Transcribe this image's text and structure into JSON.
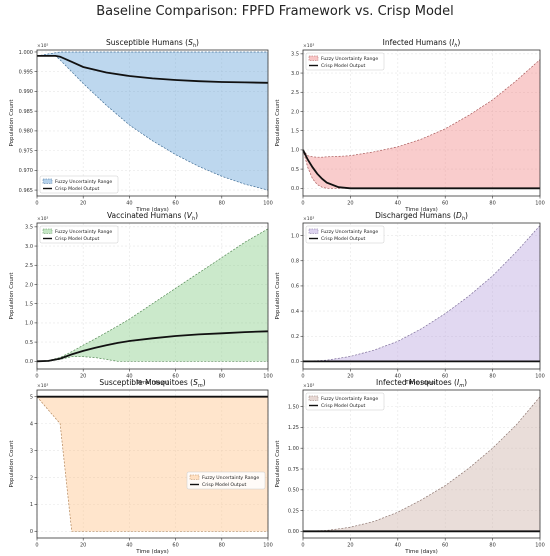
{
  "figure": {
    "title": "Baseline Comparison: FPFD Framework vs. Crisp Model"
  },
  "chart_data": [
    {
      "type": "area",
      "title": "Susceptible Humans",
      "title_sub": "h",
      "title_sym": "S",
      "xlabel": "Time (days)",
      "ylabel": "Population Count",
      "exponent_label": "1e5",
      "xlim": [
        0,
        100
      ],
      "ylim": [
        0.9635,
        1.0005
      ],
      "xticks": [
        0,
        20,
        40,
        60,
        80,
        100
      ],
      "yticks": [
        0.965,
        0.97,
        0.975,
        0.98,
        0.985,
        0.99,
        0.995,
        1.0
      ],
      "ytick_labels": [
        "0.965",
        "0.970",
        "0.975",
        "0.980",
        "0.985",
        "0.990",
        "0.995",
        "1.000"
      ],
      "grid": true,
      "legend_position": "lower-left",
      "color": "#5b9bd5",
      "x": [
        0,
        5,
        8,
        10,
        15,
        20,
        30,
        40,
        50,
        60,
        70,
        80,
        90,
        100
      ],
      "lower": [
        0.999,
        0.999,
        0.999,
        0.998,
        0.995,
        0.992,
        0.9865,
        0.9815,
        0.9775,
        0.974,
        0.971,
        0.9685,
        0.9665,
        0.965
      ],
      "upper": [
        0.999,
        0.9995,
        0.9998,
        1.0,
        1.0,
        1.0,
        1.0,
        1.0,
        1.0,
        1.0,
        1.0,
        1.0,
        1.0,
        1.0
      ],
      "crisp": [
        0.999,
        0.999,
        0.999,
        0.9988,
        0.9975,
        0.9962,
        0.9948,
        0.9939,
        0.9933,
        0.9929,
        0.9926,
        0.9924,
        0.9923,
        0.9922
      ],
      "series": [
        {
          "name": "Fuzzy Uncertainty Range"
        },
        {
          "name": "Crisp Model Output"
        }
      ]
    },
    {
      "type": "area",
      "title": "Infected Humans",
      "title_sub": "h",
      "title_sym": "I",
      "xlabel": "Time (days)",
      "ylabel": "Population Count",
      "exponent_label": "1e3",
      "xlim": [
        0,
        100
      ],
      "ylim": [
        -0.2,
        3.6
      ],
      "xticks": [
        0,
        20,
        40,
        60,
        80,
        100
      ],
      "yticks": [
        0.0,
        0.5,
        1.0,
        1.5,
        2.0,
        2.5,
        3.0,
        3.5
      ],
      "ytick_labels": [
        "0.0",
        "0.5",
        "1.0",
        "1.5",
        "2.0",
        "2.5",
        "3.0",
        "3.5"
      ],
      "grid": true,
      "legend_position": "upper-left",
      "color": "#f08080",
      "x": [
        0,
        2,
        4,
        6,
        8,
        10,
        15,
        20,
        30,
        40,
        50,
        60,
        70,
        80,
        90,
        100
      ],
      "lower": [
        1.0,
        0.55,
        0.25,
        0.1,
        0.03,
        0.0,
        0.0,
        0.0,
        0.0,
        0.0,
        0.0,
        0.0,
        0.0,
        0.0,
        0.0,
        0.0
      ],
      "upper": [
        1.0,
        0.85,
        0.82,
        0.81,
        0.81,
        0.82,
        0.83,
        0.85,
        0.95,
        1.08,
        1.28,
        1.55,
        1.9,
        2.3,
        2.8,
        3.35
      ],
      "crisp": [
        1.0,
        0.75,
        0.55,
        0.38,
        0.25,
        0.15,
        0.03,
        0.0,
        0.0,
        0.0,
        0.0,
        0.0,
        0.0,
        0.0,
        0.0,
        0.0
      ],
      "series": [
        {
          "name": "Fuzzy Uncertainty Range"
        },
        {
          "name": "Crisp Model Output"
        }
      ]
    },
    {
      "type": "area",
      "title": "Vaccinated Humans",
      "title_sub": "h",
      "title_sym": "V",
      "xlabel": "Time (days)",
      "ylabel": "Population Count",
      "exponent_label": "1e3",
      "xlim": [
        0,
        100
      ],
      "ylim": [
        -0.2,
        3.6
      ],
      "xticks": [
        0,
        20,
        40,
        60,
        80,
        100
      ],
      "yticks": [
        0.0,
        0.5,
        1.0,
        1.5,
        2.0,
        2.5,
        3.0,
        3.5
      ],
      "ytick_labels": [
        "0.0",
        "0.5",
        "1.0",
        "1.5",
        "2.0",
        "2.5",
        "3.0",
        "3.5"
      ],
      "grid": true,
      "legend_position": "upper-left",
      "color": "#7cc77c",
      "x": [
        0,
        5,
        10,
        15,
        20,
        25,
        30,
        35,
        40,
        50,
        60,
        70,
        80,
        90,
        100
      ],
      "lower": [
        0.0,
        0.0,
        0.05,
        0.12,
        0.12,
        0.1,
        0.05,
        0.0,
        0.0,
        0.0,
        0.0,
        0.0,
        0.0,
        0.0,
        0.0
      ],
      "upper": [
        0.0,
        0.02,
        0.1,
        0.25,
        0.42,
        0.58,
        0.75,
        0.92,
        1.1,
        1.5,
        1.9,
        2.3,
        2.7,
        3.1,
        3.45
      ],
      "crisp": [
        0.0,
        0.01,
        0.07,
        0.18,
        0.27,
        0.35,
        0.42,
        0.48,
        0.53,
        0.6,
        0.66,
        0.7,
        0.73,
        0.76,
        0.78
      ],
      "series": [
        {
          "name": "Fuzzy Uncertainty Range"
        },
        {
          "name": "Crisp Model Output"
        }
      ]
    },
    {
      "type": "area",
      "title": "Discharged Humans",
      "title_sub": "h",
      "title_sym": "D",
      "xlabel": "Time (days)",
      "ylabel": "Population Count",
      "exponent_label": "1e3",
      "xlim": [
        0,
        100
      ],
      "ylim": [
        -0.06,
        1.1
      ],
      "xticks": [
        0,
        20,
        40,
        60,
        80,
        100
      ],
      "yticks": [
        0.0,
        0.2,
        0.4,
        0.6,
        0.8,
        1.0
      ],
      "ytick_labels": [
        "0.0",
        "0.2",
        "0.4",
        "0.6",
        "0.8",
        "1.0"
      ],
      "grid": true,
      "legend_position": "upper-left",
      "color": "#b39ddb",
      "x": [
        0,
        10,
        20,
        30,
        40,
        50,
        60,
        70,
        80,
        90,
        100
      ],
      "lower": [
        0,
        0,
        0,
        0,
        0,
        0,
        0,
        0,
        0,
        0,
        0
      ],
      "upper": [
        0.0,
        0.01,
        0.04,
        0.09,
        0.16,
        0.26,
        0.38,
        0.52,
        0.68,
        0.87,
        1.08
      ],
      "crisp": [
        0,
        0,
        0,
        0,
        0,
        0,
        0,
        0,
        0,
        0,
        0
      ],
      "series": [
        {
          "name": "Fuzzy Uncertainty Range"
        },
        {
          "name": "Crisp Model Output"
        }
      ]
    },
    {
      "type": "area",
      "title": "Susceptible Mosquitoes",
      "title_sub": "m",
      "title_sym": "S",
      "xlabel": "Time (days)",
      "ylabel": "Population Count",
      "exponent_label": "1e3",
      "xlim": [
        0,
        100
      ],
      "ylim": [
        -0.25,
        5.25
      ],
      "xticks": [
        0,
        20,
        40,
        60,
        80,
        100
      ],
      "yticks": [
        0,
        1,
        2,
        3,
        4,
        5
      ],
      "ytick_labels": [
        "0",
        "1",
        "2",
        "3",
        "4",
        "5"
      ],
      "grid": true,
      "legend_position": "center-right",
      "color": "#ffbf80",
      "x": [
        0,
        5,
        10,
        15,
        20,
        40,
        60,
        80,
        100
      ],
      "lower": [
        5.0,
        4.5,
        4.0,
        0.0,
        0.0,
        0.0,
        0.0,
        0.0,
        0.0
      ],
      "upper": [
        5.0,
        5.0,
        5.0,
        5.0,
        5.0,
        5.0,
        5.0,
        5.0,
        5.0
      ],
      "crisp": [
        5.0,
        5.0,
        5.0,
        5.0,
        5.0,
        5.0,
        5.0,
        5.0,
        5.0
      ],
      "series": [
        {
          "name": "Fuzzy Uncertainty Range"
        },
        {
          "name": "Crisp Model Output"
        }
      ]
    },
    {
      "type": "area",
      "title": "Infected Mosquitoes",
      "title_sub": "m",
      "title_sym": "I",
      "xlabel": "Time (days)",
      "ylabel": "Population Count",
      "exponent_label": "1e3",
      "xlim": [
        0,
        100
      ],
      "ylim": [
        -0.08,
        1.7
      ],
      "xticks": [
        0,
        20,
        40,
        60,
        80,
        100
      ],
      "yticks": [
        0.0,
        0.25,
        0.5,
        0.75,
        1.0,
        1.25,
        1.5
      ],
      "ytick_labels": [
        "0.00",
        "0.25",
        "0.50",
        "0.75",
        "1.00",
        "1.25",
        "1.50"
      ],
      "grid": true,
      "legend_position": "upper-left",
      "color": "#c9a9a0",
      "x": [
        0,
        10,
        20,
        30,
        40,
        50,
        60,
        70,
        80,
        90,
        100
      ],
      "lower": [
        0,
        0,
        0,
        0,
        0,
        0,
        0,
        0,
        0,
        0,
        0
      ],
      "upper": [
        0.0,
        0.01,
        0.05,
        0.12,
        0.23,
        0.38,
        0.55,
        0.76,
        1.0,
        1.28,
        1.62
      ],
      "crisp": [
        0,
        0,
        0,
        0,
        0,
        0,
        0,
        0,
        0,
        0,
        0
      ],
      "series": [
        {
          "name": "Fuzzy Uncertainty Range"
        },
        {
          "name": "Crisp Model Output"
        }
      ]
    }
  ]
}
